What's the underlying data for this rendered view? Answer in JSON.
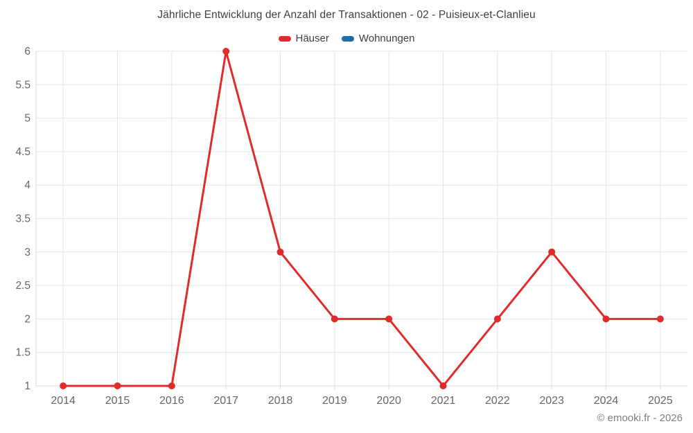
{
  "title": "Jährliche Entwicklung der Anzahl der Transaktionen - 02 - Puisieux-et-Clanlieu",
  "footer": "© emooki.fr - 2026",
  "legend": [
    {
      "label": "Häuser",
      "color": "#df2b2b"
    },
    {
      "label": "Wohnungen",
      "color": "#1c6ea5"
    }
  ],
  "colors": {
    "series_red": "#df2b2b",
    "series_blue": "#1c6ea5",
    "gridline": "#e6e6e6",
    "axis_line": "#d9d9d9",
    "axis_label": "#666666",
    "title_text": "#3f3f3f",
    "footer_text": "#7f7f7f",
    "background": "#ffffff"
  },
  "chart_data": {
    "type": "line",
    "title": "Jährliche Entwicklung der Anzahl der Transaktionen - 02 - Puisieux-et-Clanlieu",
    "categories": [
      "2014",
      "2015",
      "2016",
      "2017",
      "2018",
      "2019",
      "2020",
      "2021",
      "2022",
      "2023",
      "2024",
      "2025"
    ],
    "series": [
      {
        "name": "Häuser",
        "color": "#df2b2b",
        "values": [
          1,
          1,
          1,
          6,
          3,
          2,
          2,
          1,
          2,
          3,
          2,
          2
        ]
      },
      {
        "name": "Wohnungen",
        "color": "#1c6ea5",
        "values": []
      }
    ],
    "xlabel": "",
    "ylabel": "",
    "ylim": [
      1,
      6
    ],
    "ytick_step": 0.5,
    "grid": true,
    "legend_position": "top"
  }
}
